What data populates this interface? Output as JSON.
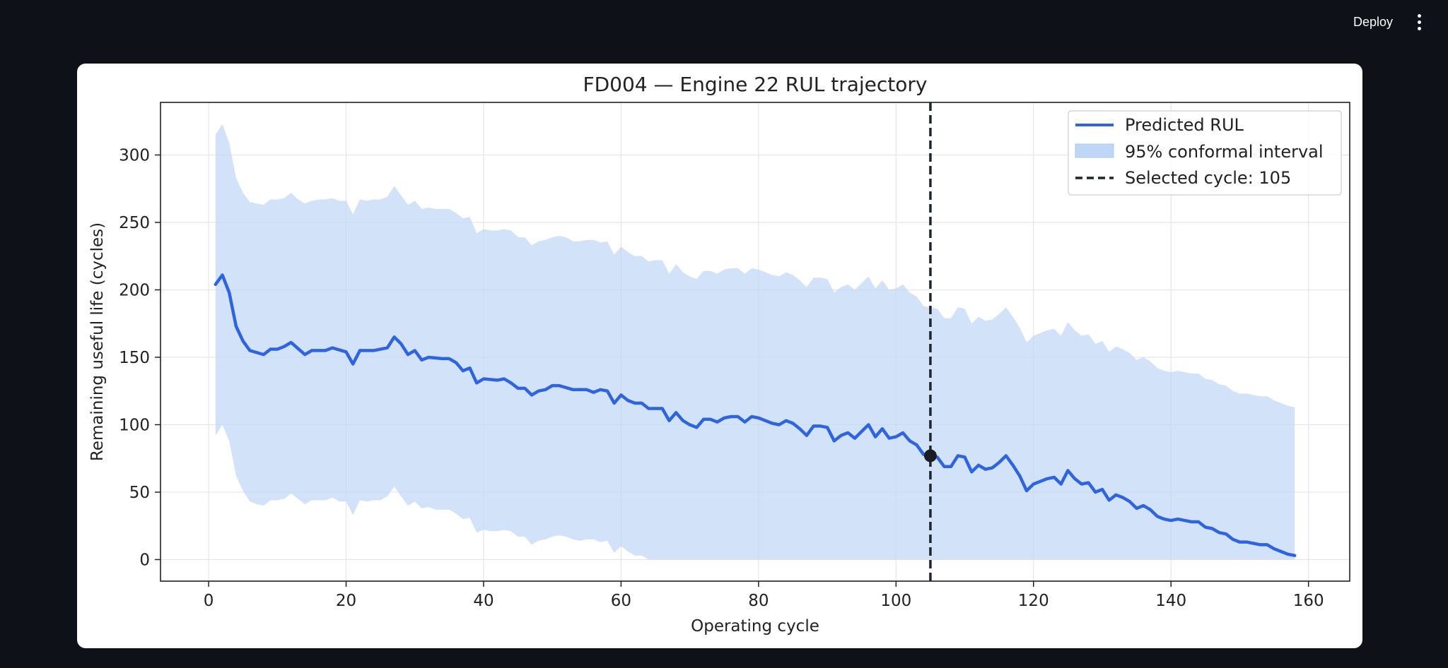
{
  "header": {
    "deploy_label": "Deploy",
    "menu_icon": "vertical-dots-icon"
  },
  "chart_data": {
    "type": "line",
    "title": "FD004 — Engine 22 RUL trajectory",
    "xlabel": "Operating cycle",
    "ylabel": "Remaining useful life (cycles)",
    "xlim": [
      -7,
      166
    ],
    "ylim": [
      -16,
      339
    ],
    "xticks": [
      0,
      20,
      40,
      60,
      80,
      100,
      120,
      140,
      160
    ],
    "yticks": [
      0,
      50,
      100,
      150,
      200,
      250,
      300
    ],
    "grid": true,
    "legend_position": "top-right",
    "series": [
      {
        "name": "Predicted RUL",
        "kind": "line",
        "color": "#2f64e0",
        "points": [
          [
            1,
            204
          ],
          [
            2,
            211
          ],
          [
            3,
            198
          ],
          [
            4,
            173
          ],
          [
            5,
            162
          ],
          [
            6,
            155
          ],
          [
            8,
            152
          ],
          [
            9,
            156
          ],
          [
            10,
            156
          ],
          [
            11,
            158
          ],
          [
            12,
            161
          ],
          [
            14,
            152
          ],
          [
            15,
            155
          ],
          [
            17,
            155
          ],
          [
            18,
            157
          ],
          [
            20,
            154
          ],
          [
            21,
            145
          ],
          [
            22,
            155
          ],
          [
            24,
            155
          ],
          [
            26,
            157
          ],
          [
            27,
            165
          ],
          [
            28,
            160
          ],
          [
            29,
            152
          ],
          [
            30,
            155
          ],
          [
            31,
            148
          ],
          [
            32,
            150
          ],
          [
            34,
            149
          ],
          [
            35,
            149
          ],
          [
            36,
            146
          ],
          [
            37,
            140
          ],
          [
            38,
            142
          ],
          [
            39,
            131
          ],
          [
            40,
            134
          ],
          [
            42,
            133
          ],
          [
            43,
            134
          ],
          [
            44,
            131
          ],
          [
            45,
            127
          ],
          [
            46,
            127
          ],
          [
            47,
            122
          ],
          [
            48,
            125
          ],
          [
            49,
            126
          ],
          [
            50,
            129
          ],
          [
            51,
            129
          ],
          [
            53,
            126
          ],
          [
            55,
            126
          ],
          [
            56,
            124
          ],
          [
            57,
            126
          ],
          [
            58,
            125
          ],
          [
            59,
            116
          ],
          [
            60,
            122
          ],
          [
            61,
            118
          ],
          [
            62,
            116
          ],
          [
            63,
            116
          ],
          [
            64,
            112
          ],
          [
            65,
            112
          ],
          [
            66,
            112
          ],
          [
            67,
            103
          ],
          [
            68,
            109
          ],
          [
            69,
            103
          ],
          [
            70,
            100
          ],
          [
            71,
            98
          ],
          [
            72,
            104
          ],
          [
            73,
            104
          ],
          [
            74,
            102
          ],
          [
            75,
            105
          ],
          [
            76,
            106
          ],
          [
            77,
            106
          ],
          [
            78,
            102
          ],
          [
            79,
            106
          ],
          [
            80,
            105
          ],
          [
            81,
            103
          ],
          [
            82,
            101
          ],
          [
            83,
            100
          ],
          [
            84,
            103
          ],
          [
            85,
            101
          ],
          [
            86,
            97
          ],
          [
            87,
            92
          ],
          [
            88,
            99
          ],
          [
            89,
            99
          ],
          [
            90,
            98
          ],
          [
            91,
            88
          ],
          [
            92,
            92
          ],
          [
            93,
            94
          ],
          [
            94,
            90
          ],
          [
            95,
            95
          ],
          [
            96,
            100
          ],
          [
            97,
            91
          ],
          [
            98,
            97
          ],
          [
            99,
            90
          ],
          [
            100,
            91
          ],
          [
            101,
            94
          ],
          [
            102,
            88
          ],
          [
            103,
            85
          ],
          [
            104,
            78
          ],
          [
            105,
            77
          ],
          [
            106,
            76
          ],
          [
            107,
            69
          ],
          [
            108,
            69
          ],
          [
            109,
            77
          ],
          [
            110,
            76
          ],
          [
            111,
            65
          ],
          [
            112,
            70
          ],
          [
            113,
            67
          ],
          [
            114,
            68
          ],
          [
            115,
            72
          ],
          [
            116,
            77
          ],
          [
            117,
            70
          ],
          [
            118,
            62
          ],
          [
            119,
            51
          ],
          [
            120,
            56
          ],
          [
            121,
            58
          ],
          [
            122,
            60
          ],
          [
            123,
            61
          ],
          [
            124,
            56
          ],
          [
            125,
            66
          ],
          [
            126,
            60
          ],
          [
            127,
            56
          ],
          [
            128,
            57
          ],
          [
            129,
            50
          ],
          [
            130,
            52
          ],
          [
            131,
            44
          ],
          [
            132,
            48
          ],
          [
            133,
            46
          ],
          [
            134,
            43
          ],
          [
            135,
            38
          ],
          [
            136,
            40
          ],
          [
            137,
            37
          ],
          [
            138,
            32
          ],
          [
            139,
            30
          ],
          [
            140,
            29
          ],
          [
            141,
            30
          ],
          [
            142,
            29
          ],
          [
            143,
            28
          ],
          [
            144,
            28
          ],
          [
            145,
            24
          ],
          [
            146,
            23
          ],
          [
            147,
            20
          ],
          [
            148,
            19
          ],
          [
            149,
            15
          ],
          [
            150,
            13
          ],
          [
            151,
            13
          ],
          [
            152,
            12
          ],
          [
            153,
            11
          ],
          [
            154,
            11
          ],
          [
            155,
            8
          ],
          [
            156,
            6
          ],
          [
            157,
            4
          ],
          [
            158,
            3
          ]
        ]
      },
      {
        "name": "95% conformal interval",
        "kind": "band",
        "color": "#bfd6f7",
        "x": [
          1,
          2,
          3,
          4,
          5,
          6,
          7,
          8,
          9,
          10,
          11,
          12,
          13,
          14,
          15,
          16,
          17,
          18,
          19,
          20,
          21,
          22,
          23,
          24,
          25,
          26,
          27,
          28,
          29,
          30,
          31,
          32,
          33,
          34,
          35,
          36,
          37,
          38,
          39,
          40,
          41,
          42,
          43,
          44,
          45,
          46,
          47,
          48,
          49,
          50,
          51,
          52,
          53,
          54,
          55,
          56,
          57,
          58,
          59,
          60,
          61,
          62,
          63,
          64,
          65,
          66,
          67,
          68,
          69,
          70,
          71,
          72,
          73,
          74,
          75,
          76,
          77,
          78,
          79,
          80,
          81,
          82,
          83,
          84,
          85,
          86,
          87,
          88,
          89,
          90,
          91,
          92,
          93,
          94,
          95,
          96,
          97,
          98,
          99,
          100,
          101,
          102,
          103,
          104,
          105,
          106,
          107,
          108,
          109,
          110,
          111,
          112,
          113,
          114,
          115,
          116,
          117,
          118,
          119,
          120,
          121,
          122,
          123,
          124,
          125,
          126,
          127,
          128,
          129,
          130,
          131,
          132,
          133,
          134,
          135,
          136,
          137,
          138,
          139,
          140,
          141,
          142,
          143,
          144,
          145,
          146,
          147,
          148,
          149,
          150,
          151,
          152,
          153,
          154,
          155,
          156,
          157,
          158
        ],
        "lower": [
          92,
          100,
          88,
          62,
          51,
          43,
          41,
          40,
          44,
          44,
          45,
          49,
          45,
          41,
          44,
          44,
          44,
          46,
          43,
          43,
          33,
          44,
          43,
          44,
          44,
          47,
          54,
          47,
          40,
          43,
          38,
          39,
          37,
          37,
          37,
          34,
          30,
          31,
          20,
          22,
          21,
          21,
          22,
          21,
          17,
          17,
          11,
          14,
          15,
          17,
          18,
          17,
          15,
          14,
          15,
          15,
          13,
          14,
          5,
          10,
          6,
          3,
          3,
          0,
          0,
          0,
          0,
          0,
          0,
          0,
          0,
          0,
          0,
          0,
          0,
          0,
          0,
          0,
          0,
          0,
          0,
          0,
          0,
          0,
          0,
          0,
          0,
          0,
          0,
          0,
          0,
          0,
          0,
          0,
          0,
          0,
          0,
          0,
          0,
          0,
          0,
          0,
          0,
          0,
          0,
          0,
          0,
          0,
          0,
          0,
          0,
          0,
          0,
          0,
          0,
          0,
          0,
          0,
          0,
          0,
          0,
          0,
          0,
          0,
          0,
          0,
          0,
          0,
          0,
          0,
          0,
          0,
          0,
          0,
          0,
          0,
          0,
          0,
          0,
          0,
          0,
          0,
          0,
          0,
          0,
          0,
          0,
          0,
          0,
          0,
          0,
          0,
          0,
          0,
          0,
          0,
          0,
          0
        ],
        "upper": [
          315,
          323,
          309,
          283,
          272,
          265,
          264,
          263,
          267,
          267,
          268,
          272,
          267,
          264,
          266,
          267,
          267,
          268,
          266,
          266,
          256,
          267,
          266,
          267,
          267,
          269,
          277,
          270,
          263,
          266,
          260,
          261,
          260,
          260,
          260,
          257,
          253,
          254,
          242,
          245,
          244,
          244,
          245,
          244,
          239,
          239,
          233,
          236,
          237,
          239,
          240,
          239,
          236,
          236,
          237,
          237,
          235,
          236,
          226,
          232,
          228,
          225,
          225,
          221,
          222,
          222,
          212,
          219,
          213,
          210,
          208,
          214,
          214,
          212,
          215,
          216,
          216,
          212,
          216,
          215,
          213,
          211,
          210,
          213,
          211,
          207,
          202,
          209,
          209,
          208,
          198,
          202,
          204,
          200,
          205,
          210,
          201,
          207,
          200,
          201,
          204,
          198,
          195,
          188,
          187,
          186,
          179,
          179,
          187,
          186,
          175,
          180,
          177,
          178,
          182,
          187,
          180,
          172,
          161,
          166,
          168,
          170,
          171,
          166,
          176,
          170,
          166,
          167,
          160,
          162,
          154,
          158,
          156,
          153,
          148,
          150,
          147,
          142,
          140,
          139,
          140,
          139,
          138,
          138,
          134,
          133,
          130,
          129,
          125,
          123,
          123,
          122,
          121,
          121,
          118,
          116,
          114,
          113
        ]
      },
      {
        "name": "Selected cycle: 105",
        "kind": "vline",
        "color": "#1f2430",
        "x": 105
      }
    ],
    "marker": {
      "x": 105,
      "y": 77,
      "color": "#1a1d24"
    }
  }
}
